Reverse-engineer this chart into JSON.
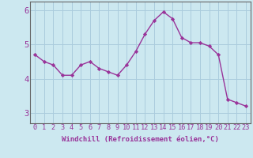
{
  "x": [
    0,
    1,
    2,
    3,
    4,
    5,
    6,
    7,
    8,
    9,
    10,
    11,
    12,
    13,
    14,
    15,
    16,
    17,
    18,
    19,
    20,
    21,
    22,
    23
  ],
  "y": [
    4.7,
    4.5,
    4.4,
    4.1,
    4.1,
    4.4,
    4.5,
    4.3,
    4.2,
    4.1,
    4.4,
    4.8,
    5.3,
    5.7,
    5.95,
    5.75,
    5.2,
    5.05,
    5.05,
    4.95,
    4.7,
    3.4,
    3.3,
    3.2
  ],
  "line_color": "#993399",
  "marker": "D",
  "marker_size": 2.2,
  "background_color": "#cce8f0",
  "grid_color": "#aaccdd",
  "xlabel": "Windchill (Refroidissement éolien,°C)",
  "xlabel_fontsize": 6.5,
  "ylabel_ticks": [
    3,
    4,
    5,
    6
  ],
  "xlim": [
    -0.5,
    23.5
  ],
  "ylim": [
    2.7,
    6.25
  ],
  "xtick_labels": [
    "0",
    "1",
    "2",
    "3",
    "4",
    "5",
    "6",
    "7",
    "8",
    "9",
    "10",
    "11",
    "12",
    "13",
    "14",
    "15",
    "16",
    "17",
    "18",
    "19",
    "20",
    "21",
    "22",
    "23"
  ],
  "tick_fontsize": 6.2,
  "ytick_fontsize": 7.5,
  "line_width": 1.0
}
